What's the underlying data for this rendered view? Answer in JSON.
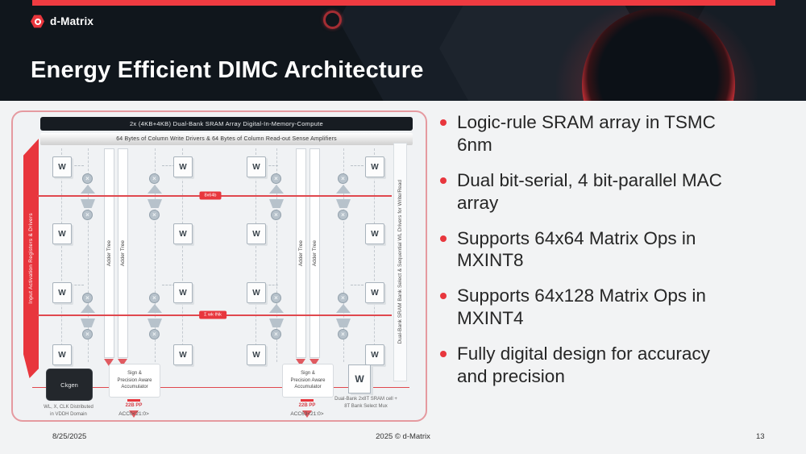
{
  "header": {
    "logo_text": "d-Matrix",
    "title": "Energy Efficient DIMC Architecture"
  },
  "diagram": {
    "banner": "2x (4KB+4KB) Dual-Bank SRAM Array Digital-In-Memory-Compute",
    "drivers_bar": "64 Bytes of Column Write Drivers & 64 Bytes of Column Read-out Sense Amplifiers",
    "left_bar": "Input Activation Registers & Drivers",
    "right_bar": "Dual-Bank SRAM Bank Select & Sequential WL Drivers for Write/Read",
    "adder_tree_label": "Adder Tree",
    "w_label": "W",
    "mult_symbol": "×",
    "bus1_label": "8x64b",
    "bus2_label": "Σ wk·INk",
    "ckgen_label": "Ckgen",
    "ckgen_caption": "WL, X, CLK Distributed\nin VDDH Domain",
    "accumulator_label": "Sign &\nPrecision Aware\nAccumulator",
    "pp_label": "22B PP",
    "acc0_label": "ACC0<21:0>",
    "acc63_label": "ACC63<21:0>",
    "sram_cell_caption": "Dual-Bank 2x8T SRAM cell +\n8T Bank Select Mux"
  },
  "bullets": [
    "Logic-rule SRAM array in TSMC\n6nm",
    "Dual bit-serial, 4 bit-parallel MAC\narray",
    "Supports 64x64 Matrix Ops in\nMXINT8",
    "Supports 64x128 Matrix Ops in\nMXINT4",
    "Fully digital design for accuracy\nand precision"
  ],
  "footer": {
    "date": "8/25/2025",
    "copyright": "2025 © d-Matrix",
    "page_number": "13"
  },
  "colors": {
    "accent_red": "#E8363D",
    "header_bg": "#10161C",
    "body_bg": "#F2F3F4",
    "text_dark": "#262626"
  }
}
